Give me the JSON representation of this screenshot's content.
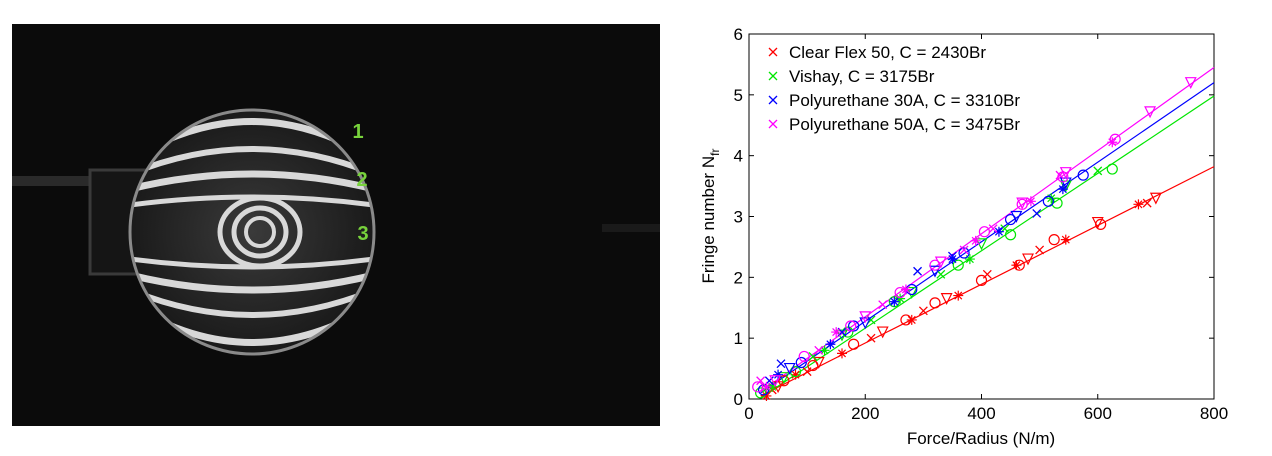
{
  "photo": {
    "fringe_labels": [
      "1",
      "2",
      "3"
    ]
  },
  "chart_data": {
    "type": "scatter",
    "xlabel": "Force/Radius (N/m)",
    "ylabel": "Fringe number N",
    "ylabel_subscript": "fr",
    "xlim": [
      0,
      800
    ],
    "ylim": [
      0,
      6
    ],
    "xticks": [
      "0",
      "200",
      "400",
      "600",
      "800"
    ],
    "yticks": [
      "0",
      "1",
      "2",
      "3",
      "4",
      "5",
      "6"
    ],
    "grid": false,
    "legend_position": "top-left",
    "series": [
      {
        "name": "Clear Flex 50, C = 2430Br",
        "color": "#ff0000",
        "fit_line": [
          [
            20,
            0.05
          ],
          [
            800,
            3.82
          ]
        ],
        "points": [
          {
            "m": "circle",
            "x": 60,
            "y": 0.3
          },
          {
            "m": "circle",
            "x": 110,
            "y": 0.55
          },
          {
            "m": "circle",
            "x": 180,
            "y": 0.9
          },
          {
            "m": "circle",
            "x": 270,
            "y": 1.3
          },
          {
            "m": "circle",
            "x": 320,
            "y": 1.58
          },
          {
            "m": "circle",
            "x": 400,
            "y": 1.95
          },
          {
            "m": "circle",
            "x": 465,
            "y": 2.2
          },
          {
            "m": "circle",
            "x": 525,
            "y": 2.62
          },
          {
            "m": "circle",
            "x": 605,
            "y": 2.87
          },
          {
            "m": "star",
            "x": 30,
            "y": 0.05
          },
          {
            "m": "star",
            "x": 80,
            "y": 0.4
          },
          {
            "m": "star",
            "x": 160,
            "y": 0.75
          },
          {
            "m": "star",
            "x": 280,
            "y": 1.3
          },
          {
            "m": "star",
            "x": 360,
            "y": 1.7
          },
          {
            "m": "star",
            "x": 460,
            "y": 2.2
          },
          {
            "m": "star",
            "x": 545,
            "y": 2.62
          },
          {
            "m": "star",
            "x": 670,
            "y": 3.2
          },
          {
            "m": "triangle",
            "x": 50,
            "y": 0.2
          },
          {
            "m": "triangle",
            "x": 120,
            "y": 0.6
          },
          {
            "m": "triangle",
            "x": 230,
            "y": 1.1
          },
          {
            "m": "triangle",
            "x": 340,
            "y": 1.65
          },
          {
            "m": "triangle",
            "x": 480,
            "y": 2.3
          },
          {
            "m": "triangle",
            "x": 600,
            "y": 2.9
          },
          {
            "m": "triangle",
            "x": 700,
            "y": 3.3
          },
          {
            "m": "x",
            "x": 40,
            "y": 0.15
          },
          {
            "m": "x",
            "x": 100,
            "y": 0.45
          },
          {
            "m": "x",
            "x": 210,
            "y": 1.0
          },
          {
            "m": "x",
            "x": 300,
            "y": 1.45
          },
          {
            "m": "x",
            "x": 410,
            "y": 2.05
          },
          {
            "m": "x",
            "x": 500,
            "y": 2.45
          },
          {
            "m": "x",
            "x": 685,
            "y": 3.22
          }
        ]
      },
      {
        "name": "Vishay, C = 3175Br",
        "color": "#00e600",
        "fit_line": [
          [
            20,
            0.02
          ],
          [
            800,
            4.98
          ]
        ],
        "points": [
          {
            "m": "circle",
            "x": 20,
            "y": 0.1
          },
          {
            "m": "circle",
            "x": 80,
            "y": 0.45
          },
          {
            "m": "circle",
            "x": 170,
            "y": 1.1
          },
          {
            "m": "circle",
            "x": 250,
            "y": 1.6
          },
          {
            "m": "circle",
            "x": 360,
            "y": 2.2
          },
          {
            "m": "circle",
            "x": 450,
            "y": 2.7
          },
          {
            "m": "circle",
            "x": 530,
            "y": 3.22
          },
          {
            "m": "circle",
            "x": 625,
            "y": 3.78
          },
          {
            "m": "star",
            "x": 40,
            "y": 0.2
          },
          {
            "m": "star",
            "x": 130,
            "y": 0.8
          },
          {
            "m": "star",
            "x": 260,
            "y": 1.65
          },
          {
            "m": "star",
            "x": 380,
            "y": 2.3
          },
          {
            "m": "star",
            "x": 520,
            "y": 3.3
          },
          {
            "m": "triangle",
            "x": 60,
            "y": 0.35
          },
          {
            "m": "triangle",
            "x": 160,
            "y": 1.05
          },
          {
            "m": "triangle",
            "x": 280,
            "y": 1.75
          },
          {
            "m": "triangle",
            "x": 400,
            "y": 2.55
          },
          {
            "m": "triangle",
            "x": 545,
            "y": 3.5
          },
          {
            "m": "x",
            "x": 30,
            "y": 0.18
          },
          {
            "m": "x",
            "x": 110,
            "y": 0.7
          },
          {
            "m": "x",
            "x": 210,
            "y": 1.3
          },
          {
            "m": "x",
            "x": 330,
            "y": 2.05
          },
          {
            "m": "x",
            "x": 440,
            "y": 2.8
          },
          {
            "m": "x",
            "x": 600,
            "y": 3.75
          }
        ]
      },
      {
        "name": "Polyurethane 30A, C = 3310Br",
        "color": "#0000ff",
        "fit_line": [
          [
            20,
            0.1
          ],
          [
            800,
            5.2
          ]
        ],
        "points": [
          {
            "m": "circle",
            "x": 25,
            "y": 0.15
          },
          {
            "m": "circle",
            "x": 90,
            "y": 0.6
          },
          {
            "m": "circle",
            "x": 180,
            "y": 1.2
          },
          {
            "m": "circle",
            "x": 280,
            "y": 1.8
          },
          {
            "m": "circle",
            "x": 370,
            "y": 2.4
          },
          {
            "m": "circle",
            "x": 450,
            "y": 2.95
          },
          {
            "m": "circle",
            "x": 515,
            "y": 3.25
          },
          {
            "m": "circle",
            "x": 575,
            "y": 3.68
          },
          {
            "m": "star",
            "x": 50,
            "y": 0.4
          },
          {
            "m": "star",
            "x": 140,
            "y": 0.9
          },
          {
            "m": "star",
            "x": 250,
            "y": 1.6
          },
          {
            "m": "star",
            "x": 350,
            "y": 2.3
          },
          {
            "m": "star",
            "x": 430,
            "y": 2.75
          },
          {
            "m": "star",
            "x": 540,
            "y": 3.45
          },
          {
            "m": "triangle",
            "x": 70,
            "y": 0.5
          },
          {
            "m": "triangle",
            "x": 200,
            "y": 1.25
          },
          {
            "m": "triangle",
            "x": 320,
            "y": 2.1
          },
          {
            "m": "triangle",
            "x": 460,
            "y": 3.0
          },
          {
            "m": "triangle",
            "x": 545,
            "y": 3.55
          },
          {
            "m": "x",
            "x": 35,
            "y": 0.3
          },
          {
            "m": "x",
            "x": 55,
            "y": 0.58
          },
          {
            "m": "x",
            "x": 160,
            "y": 1.1
          },
          {
            "m": "x",
            "x": 290,
            "y": 2.1
          },
          {
            "m": "x",
            "x": 350,
            "y": 2.35
          },
          {
            "m": "x",
            "x": 495,
            "y": 3.05
          }
        ]
      },
      {
        "name": "Polyurethane 50A, C = 3475Br",
        "color": "#ff00ff",
        "fit_line": [
          [
            20,
            0.12
          ],
          [
            800,
            5.45
          ]
        ],
        "points": [
          {
            "m": "circle",
            "x": 15,
            "y": 0.2
          },
          {
            "m": "circle",
            "x": 95,
            "y": 0.7
          },
          {
            "m": "circle",
            "x": 175,
            "y": 1.2
          },
          {
            "m": "circle",
            "x": 260,
            "y": 1.75
          },
          {
            "m": "circle",
            "x": 320,
            "y": 2.2
          },
          {
            "m": "circle",
            "x": 405,
            "y": 2.75
          },
          {
            "m": "circle",
            "x": 470,
            "y": 3.2
          },
          {
            "m": "circle",
            "x": 540,
            "y": 3.65
          },
          {
            "m": "circle",
            "x": 630,
            "y": 4.27
          },
          {
            "m": "star",
            "x": 30,
            "y": 0.2
          },
          {
            "m": "star",
            "x": 150,
            "y": 1.1
          },
          {
            "m": "star",
            "x": 270,
            "y": 1.8
          },
          {
            "m": "star",
            "x": 390,
            "y": 2.6
          },
          {
            "m": "star",
            "x": 485,
            "y": 3.25
          },
          {
            "m": "star",
            "x": 625,
            "y": 4.22
          },
          {
            "m": "triangle",
            "x": 45,
            "y": 0.3
          },
          {
            "m": "triangle",
            "x": 200,
            "y": 1.35
          },
          {
            "m": "triangle",
            "x": 330,
            "y": 2.25
          },
          {
            "m": "triangle",
            "x": 470,
            "y": 3.22
          },
          {
            "m": "triangle",
            "x": 545,
            "y": 3.72
          },
          {
            "m": "triangle",
            "x": 690,
            "y": 4.72
          },
          {
            "m": "triangle",
            "x": 760,
            "y": 5.2
          },
          {
            "m": "x",
            "x": 20,
            "y": 0.3
          },
          {
            "m": "x",
            "x": 120,
            "y": 0.8
          },
          {
            "m": "x",
            "x": 230,
            "y": 1.55
          },
          {
            "m": "x",
            "x": 370,
            "y": 2.45
          },
          {
            "m": "x",
            "x": 420,
            "y": 2.8
          },
          {
            "m": "x",
            "x": 535,
            "y": 3.68
          }
        ]
      }
    ]
  }
}
